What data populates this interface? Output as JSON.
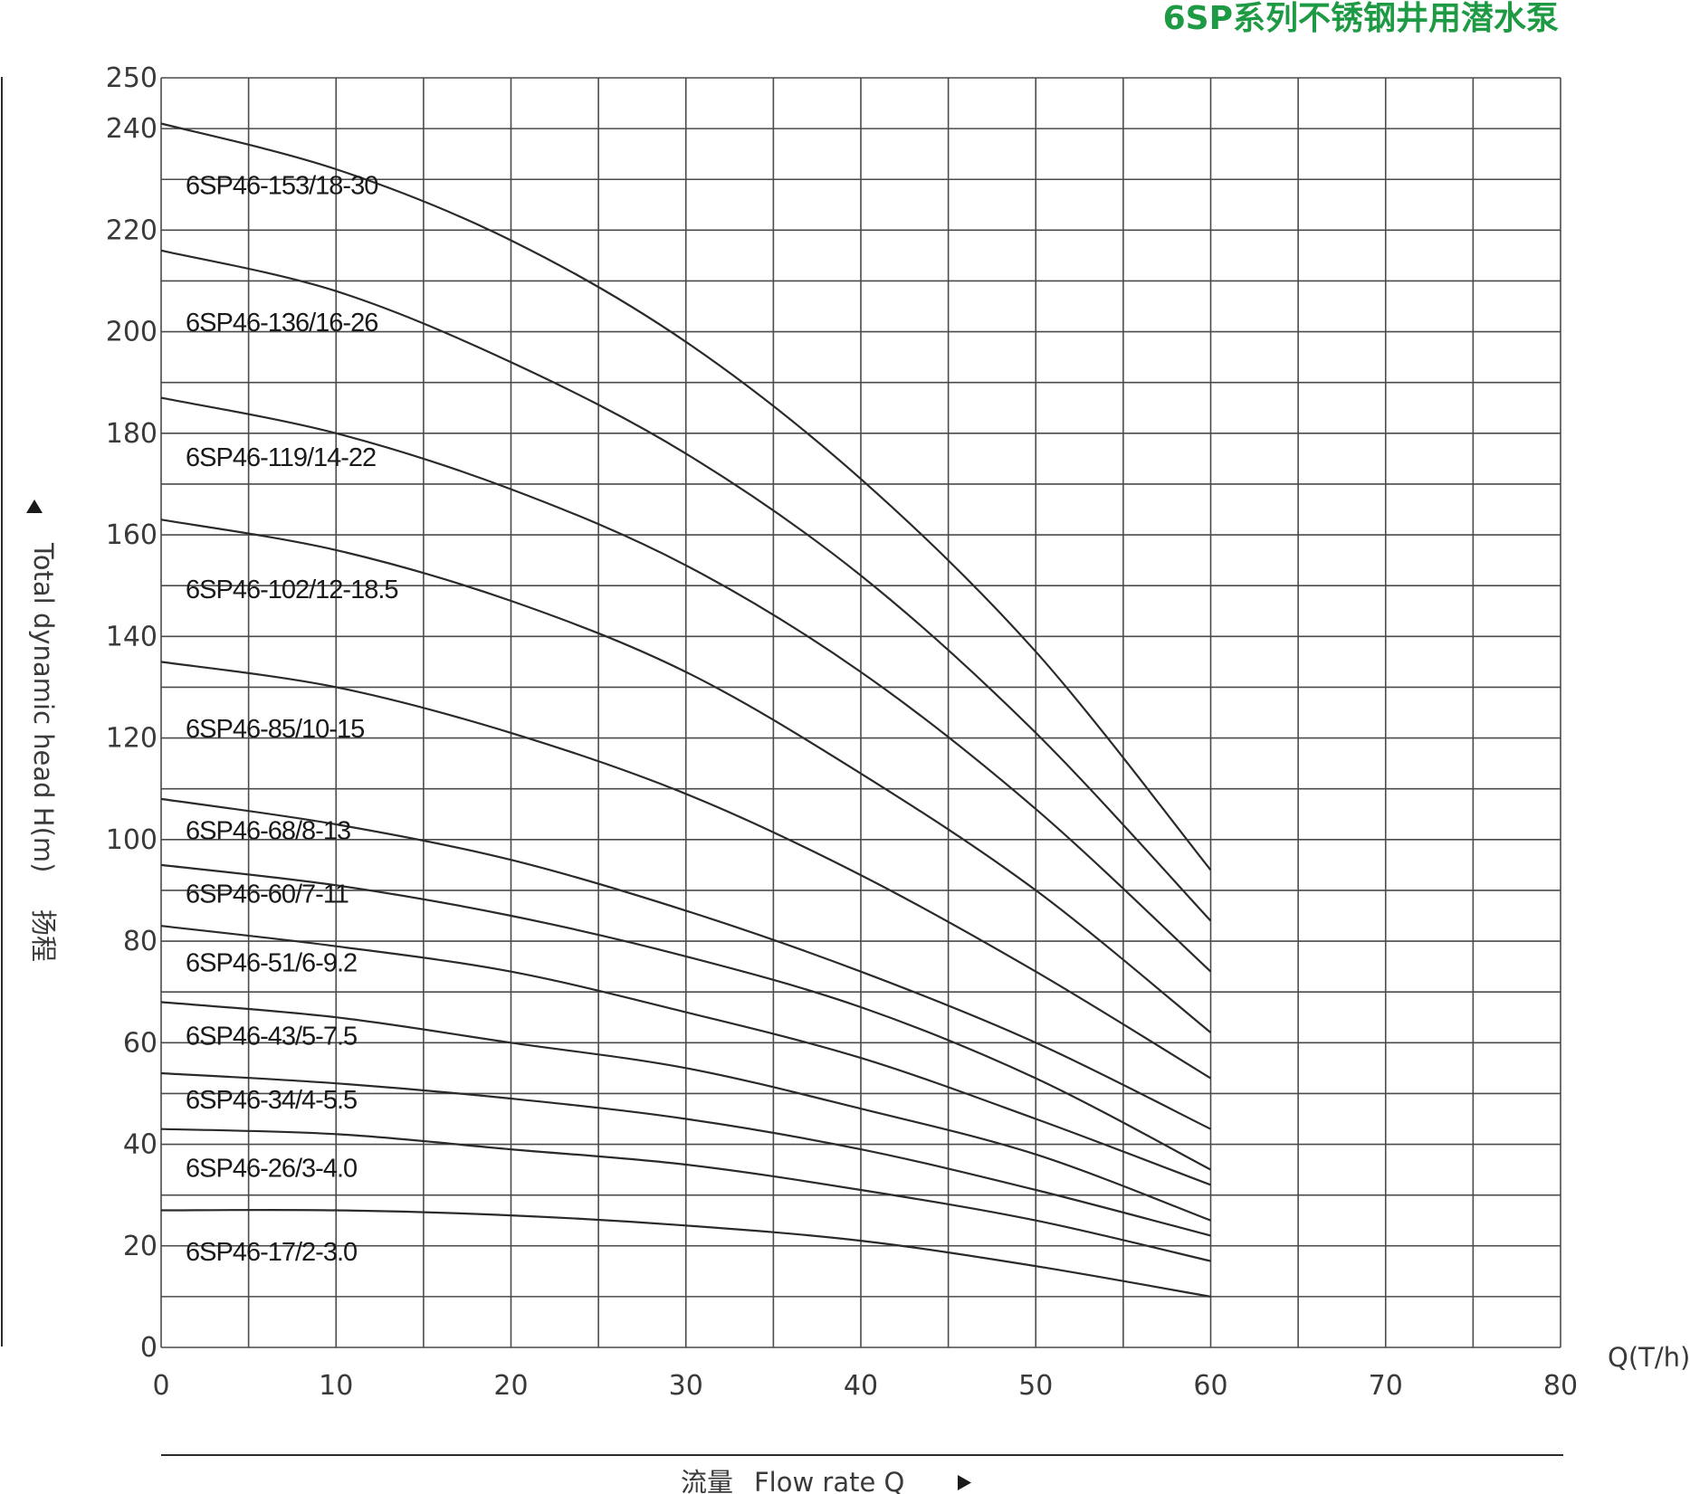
{
  "title": "6SP系列不锈钢井用潜水泵",
  "colors": {
    "title": "#1f9a44",
    "grid": "#4a4a4a",
    "curve": "#2a2a2a",
    "text": "#3a3a3a"
  },
  "chart_data": {
    "type": "line",
    "title": "6SP系列不锈钢井用潜水泵",
    "xlabel_cn": "流量",
    "xlabel": "Flow rate Q",
    "x_unit": "Q(T/h)",
    "ylabel": "Total dynamic head H(m)",
    "ylabel_cn": "扬程",
    "xlim": [
      0,
      80
    ],
    "ylim": [
      0,
      250
    ],
    "x_ticks": [
      0,
      10,
      20,
      30,
      40,
      50,
      60,
      70,
      80
    ],
    "y_ticks": [
      0,
      20,
      40,
      60,
      80,
      100,
      120,
      140,
      160,
      180,
      200,
      220,
      240,
      250
    ],
    "grid": true,
    "x_grid_step": 5,
    "y_grid_step": 10,
    "series": [
      {
        "name": "6SP46-153/18-30",
        "x": [
          0,
          10,
          20,
          30,
          40,
          50,
          60
        ],
        "y": [
          241,
          232,
          218,
          198,
          171,
          137,
          94
        ]
      },
      {
        "name": "6SP46-136/16-26",
        "x": [
          0,
          10,
          20,
          30,
          40,
          50,
          60
        ],
        "y": [
          216,
          208,
          194,
          176,
          152,
          121,
          84
        ]
      },
      {
        "name": "6SP46-119/14-22",
        "x": [
          0,
          10,
          20,
          30,
          40,
          50,
          60
        ],
        "y": [
          187,
          180,
          169,
          154,
          133,
          106,
          74
        ]
      },
      {
        "name": "6SP46-102/12-18.5",
        "x": [
          0,
          10,
          20,
          30,
          40,
          50,
          60
        ],
        "y": [
          163,
          157,
          147,
          133,
          113,
          90,
          62
        ]
      },
      {
        "name": "6SP46-85/10-15",
        "x": [
          0,
          10,
          20,
          30,
          40,
          50,
          60
        ],
        "y": [
          135,
          130,
          121,
          109,
          93,
          74,
          53
        ]
      },
      {
        "name": "6SP46-68/8-13",
        "x": [
          0,
          10,
          20,
          30,
          40,
          50,
          60
        ],
        "y": [
          108,
          103,
          96,
          86,
          74,
          60,
          43
        ]
      },
      {
        "name": "6SP46-60/7-11",
        "x": [
          0,
          10,
          20,
          30,
          40,
          50,
          60
        ],
        "y": [
          95,
          91,
          85,
          77,
          67,
          53,
          35
        ]
      },
      {
        "name": "6SP46-51/6-9.2",
        "x": [
          0,
          10,
          20,
          30,
          40,
          50,
          60
        ],
        "y": [
          83,
          79,
          74,
          66,
          57,
          45,
          32
        ]
      },
      {
        "name": "6SP46-43/5-7.5",
        "x": [
          0,
          10,
          20,
          30,
          40,
          50,
          60
        ],
        "y": [
          68,
          65,
          60,
          55,
          47,
          38,
          25
        ]
      },
      {
        "name": "6SP46-34/4-5.5",
        "x": [
          0,
          10,
          20,
          30,
          40,
          50,
          60
        ],
        "y": [
          54,
          52,
          49,
          45,
          39,
          31,
          22
        ]
      },
      {
        "name": "6SP46-26/3-4.0",
        "x": [
          0,
          10,
          20,
          30,
          40,
          50,
          60
        ],
        "y": [
          43,
          42,
          39,
          36,
          31,
          25,
          17
        ]
      },
      {
        "name": "6SP46-17/2-3.0",
        "x": [
          0,
          10,
          20,
          30,
          40,
          50,
          60
        ],
        "y": [
          27,
          27,
          26,
          24,
          21,
          16,
          10
        ]
      }
    ]
  }
}
